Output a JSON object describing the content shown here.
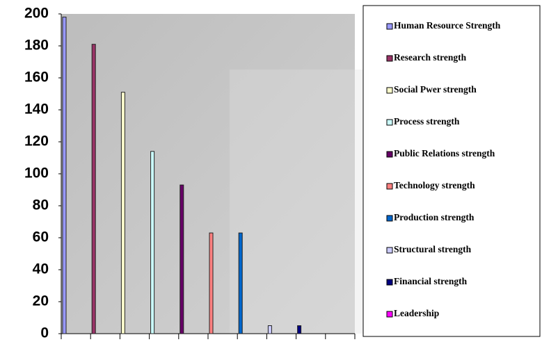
{
  "chart_data": {
    "type": "bar",
    "series": [
      {
        "name": "Human Resource Strength",
        "color": "#9999ff",
        "values": [
          198
        ]
      },
      {
        "name": "Research strength",
        "color": "#993366",
        "values": [
          181
        ]
      },
      {
        "name": "Social Pwer strength",
        "color": "#ffffcc",
        "values": [
          151
        ]
      },
      {
        "name": "Process strength",
        "color": "#ccffff",
        "values": [
          114
        ]
      },
      {
        "name": "Public Relations strength",
        "color": "#660066",
        "values": [
          93
        ]
      },
      {
        "name": "Technology strength",
        "color": "#ff8080",
        "values": [
          63
        ]
      },
      {
        "name": "Production strength",
        "color": "#0066cc",
        "values": [
          63
        ]
      },
      {
        "name": "Structural strength",
        "color": "#ccccff",
        "values": [
          5
        ]
      },
      {
        "name": "Financial strength",
        "color": "#000080",
        "values": [
          5
        ]
      },
      {
        "name": "Leadership",
        "color": "#ff00ff",
        "values": [
          0
        ]
      }
    ],
    "ylim": [
      0,
      200
    ],
    "yticks": [
      0,
      20,
      40,
      60,
      80,
      100,
      120,
      140,
      160,
      180,
      200
    ]
  }
}
